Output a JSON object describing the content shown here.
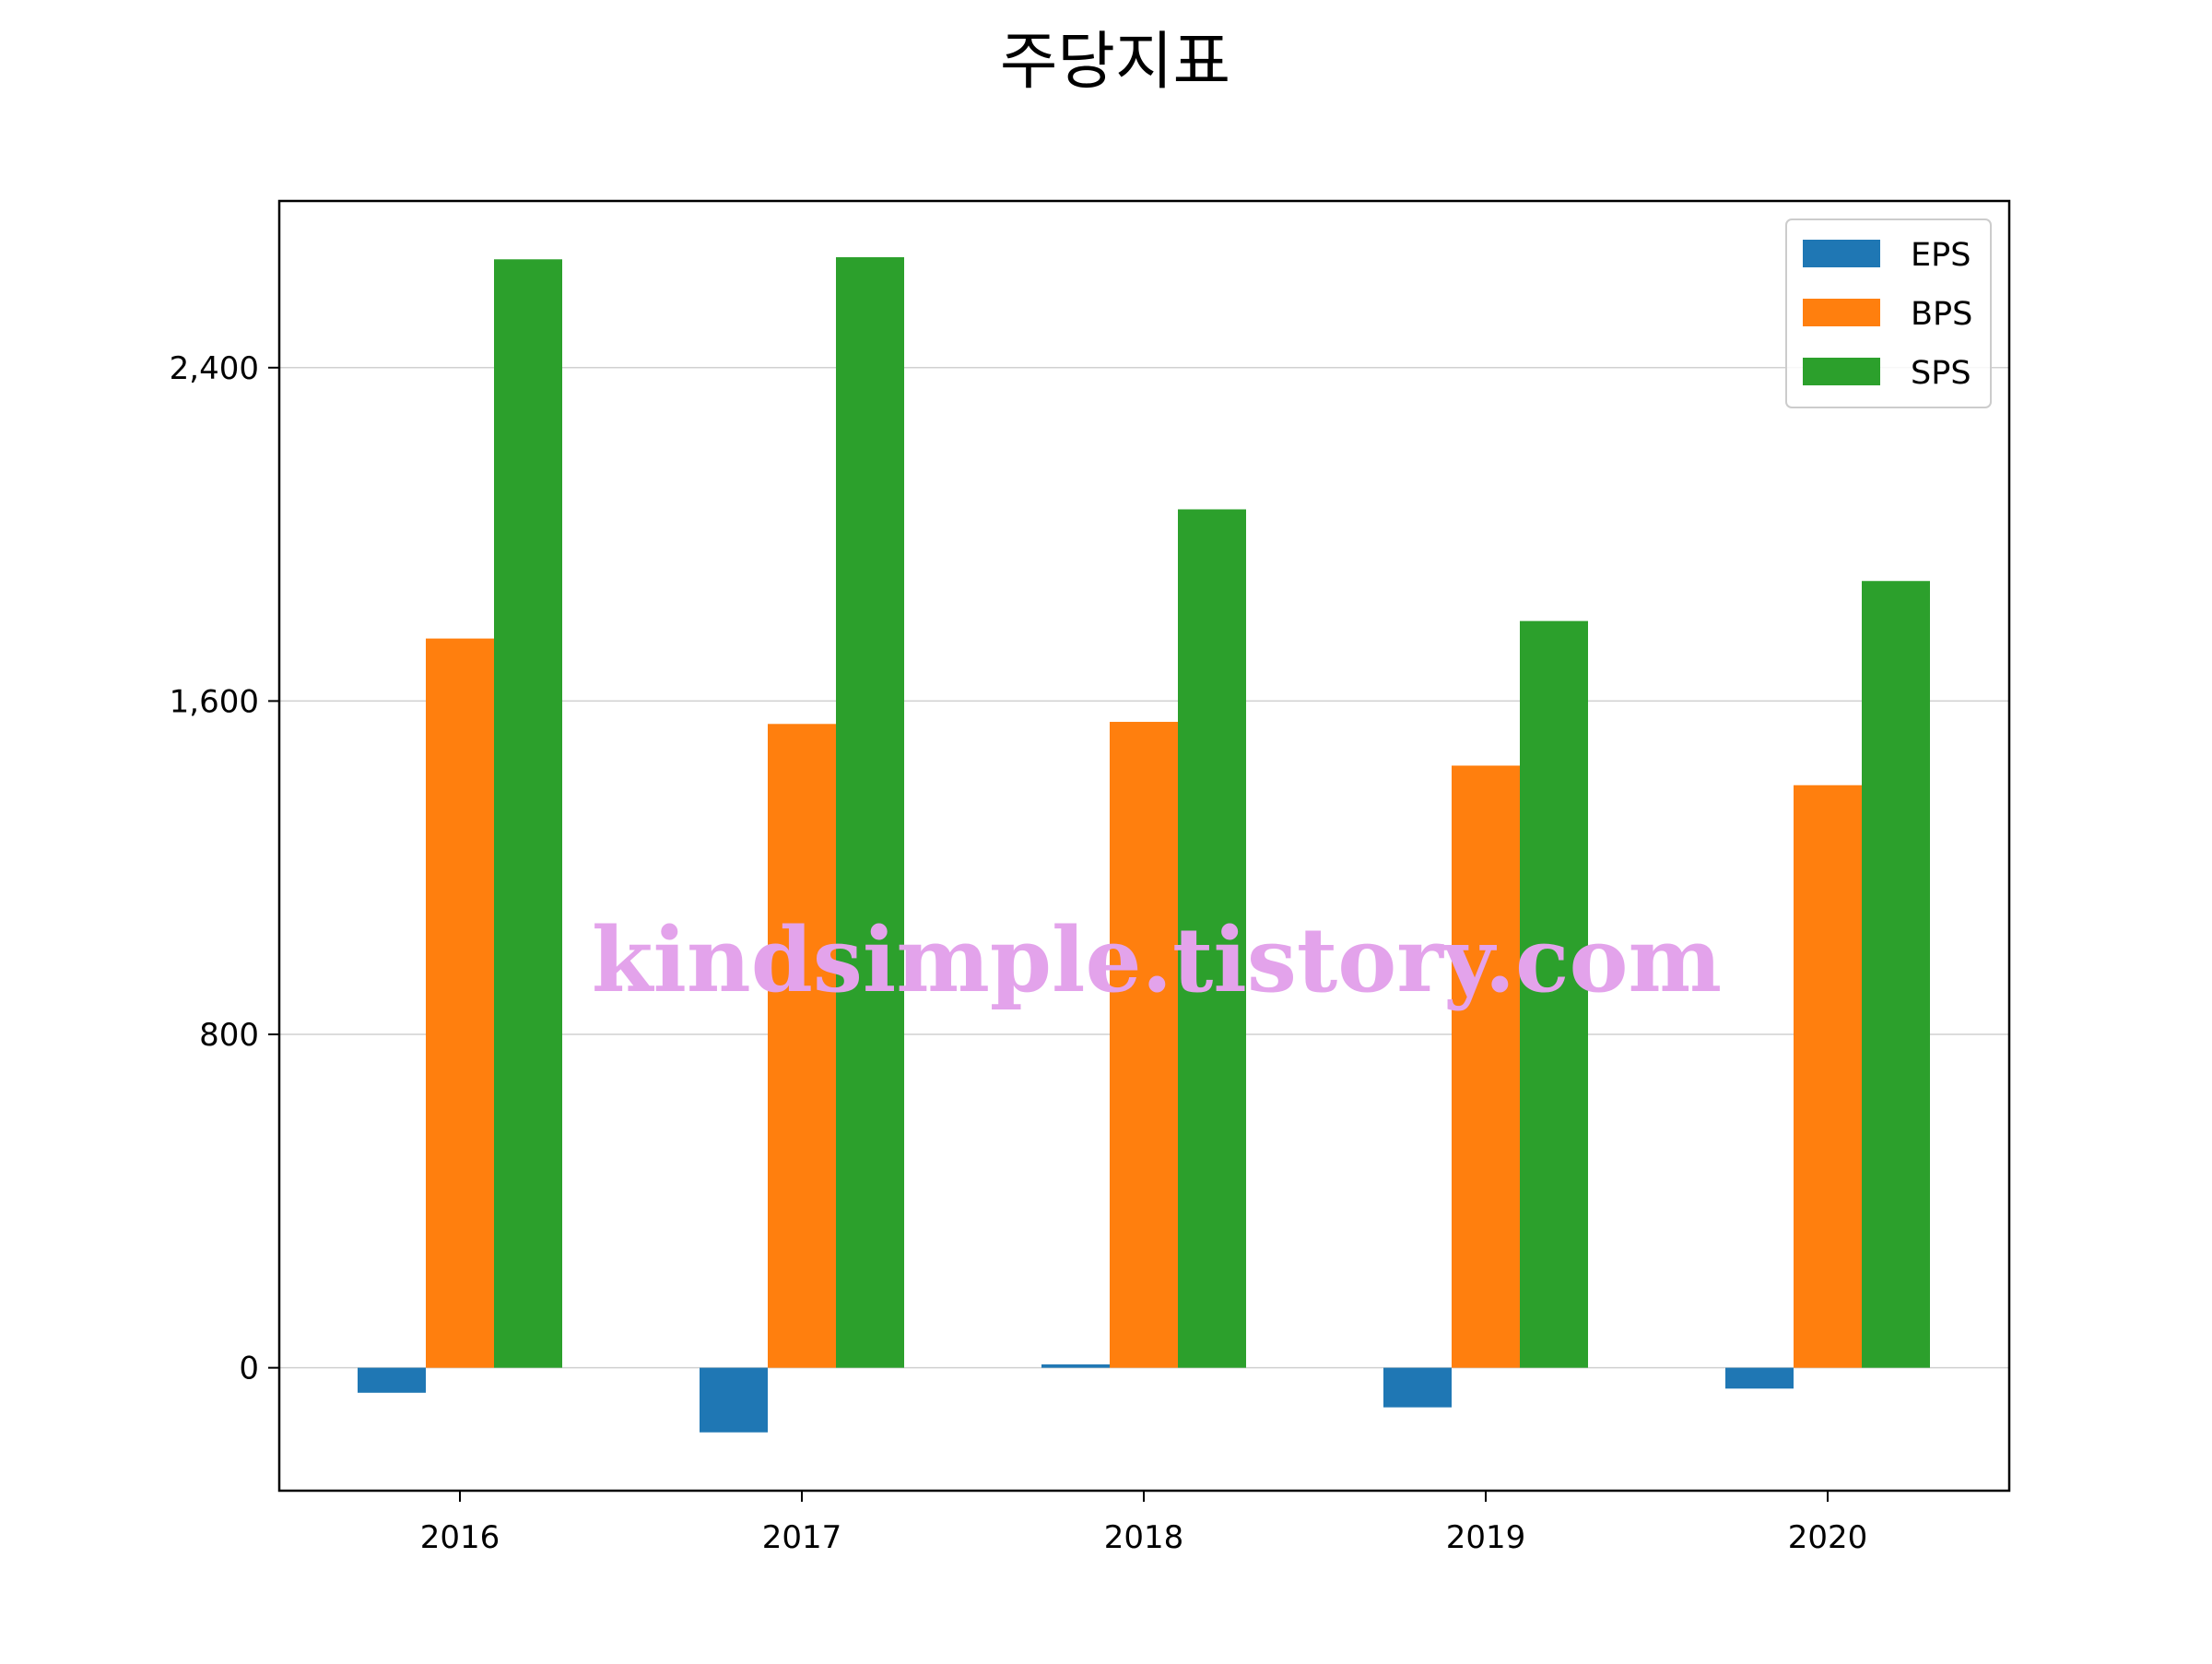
{
  "chart_data": {
    "type": "bar",
    "title": "주당지표",
    "xlabel": "",
    "ylabel": "",
    "categories": [
      "2016",
      "2017",
      "2018",
      "2019",
      "2020"
    ],
    "series": [
      {
        "name": "EPS",
        "color": "#1f77b4",
        "values": [
          -60,
          -155,
          8,
          -95,
          -50
        ]
      },
      {
        "name": "BPS",
        "color": "#ff7f0e",
        "values": [
          1750,
          1545,
          1550,
          1445,
          1398
        ]
      },
      {
        "name": "SPS",
        "color": "#2ca02c",
        "values": [
          2660,
          2665,
          2060,
          1792,
          1888
        ]
      }
    ],
    "ylim": [
      -295,
      2800
    ],
    "yticks": [
      0,
      800,
      1600,
      2400
    ],
    "ytick_labels": [
      "0",
      "800",
      "1,600",
      "2,400"
    ],
    "grid": "y",
    "legend": "top-right"
  },
  "watermark": "kindsimple.tistory.com"
}
